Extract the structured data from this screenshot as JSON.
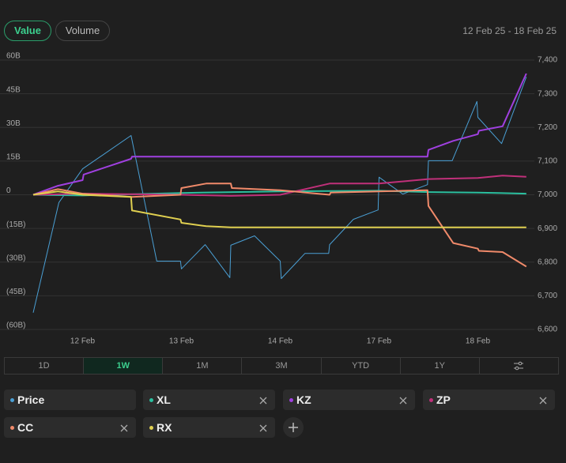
{
  "controls": {
    "toggles": [
      "Value",
      "Volume"
    ],
    "date_range": "12 Feb 25 - 18 Feb 25",
    "ranges": [
      "1D",
      "1W",
      "1M",
      "3M",
      "YTD",
      "1Y"
    ],
    "active_range": "1W",
    "active_toggle": "Value"
  },
  "chart_data": {
    "type": "line",
    "grid": true,
    "xlim": [
      0.5,
      5.5
    ],
    "xticks": [
      {
        "value": 1,
        "label": "12 Feb"
      },
      {
        "value": 2,
        "label": "13 Feb"
      },
      {
        "value": 3,
        "label": "14 Feb"
      },
      {
        "value": 4,
        "label": "17 Feb"
      },
      {
        "value": 5,
        "label": "18 Feb"
      }
    ],
    "ylim": [
      -60,
      60
    ],
    "yticks": [
      {
        "value": 60,
        "label": "60B"
      },
      {
        "value": 45,
        "label": "45B"
      },
      {
        "value": 30,
        "label": "30B"
      },
      {
        "value": 15,
        "label": "15B"
      },
      0,
      {
        "value": -15,
        "label": "(15B)"
      },
      {
        "value": -30,
        "label": "(30B)"
      },
      {
        "value": -45,
        "label": "(45B)"
      },
      {
        "value": -60,
        "label": "(60B)"
      }
    ],
    "y2lim": [
      6600,
      7400
    ],
    "y2ticks": [
      {
        "value": 7400,
        "label": "7,400"
      },
      {
        "value": 7300,
        "label": "7,300"
      },
      {
        "value": 7200,
        "label": "7,200"
      },
      {
        "value": 7100,
        "label": "7,100"
      },
      {
        "value": 7000,
        "label": "7,000"
      },
      {
        "value": 6900,
        "label": "6,900"
      },
      {
        "value": 6800,
        "label": "6,800"
      },
      {
        "value": 6700,
        "label": "6,700"
      },
      {
        "value": 6600,
        "label": "6,600"
      }
    ],
    "series": [
      {
        "name": "Price",
        "color": "#4a9fd4",
        "axis": "y2",
        "x": [
          0.5,
          0.76,
          1.0,
          1.49,
          1.75,
          1.99,
          2.0,
          2.24,
          2.49,
          2.5,
          2.74,
          3.0,
          3.01,
          3.25,
          3.49,
          3.5,
          3.74,
          3.99,
          4.0,
          4.24,
          4.49,
          4.5,
          4.74,
          4.99,
          5.0,
          5.24,
          5.49
        ],
        "values": [
          6650,
          6977,
          7077,
          7176,
          6803,
          6803,
          6780,
          6852,
          6754,
          6850,
          6878,
          6803,
          6751,
          6826,
          6826,
          6852,
          6927,
          6955,
          7052,
          7002,
          7030,
          7101,
          7101,
          7277,
          7230,
          7152,
          7350
        ]
      },
      {
        "name": "XL",
        "color": "#2bbf9f",
        "x": [
          0.5,
          1.0,
          2.0,
          3.0,
          4.0,
          4.5,
          5.0,
          5.49
        ],
        "values": [
          0,
          -0.3,
          0.8,
          1.5,
          1.8,
          1.2,
          1.0,
          0.5
        ]
      },
      {
        "name": "KZ",
        "color": "#a040e0",
        "x": [
          0.5,
          0.75,
          1.0,
          1.01,
          1.49,
          1.5,
          4.49,
          4.5,
          4.75,
          5.0,
          5.01,
          5.25,
          5.49
        ],
        "values": [
          0,
          4,
          6.5,
          9,
          16,
          17,
          17,
          20,
          24,
          27,
          28.5,
          30.5,
          54
        ]
      },
      {
        "name": "ZP",
        "color": "#c0307a",
        "x": [
          0.5,
          1.0,
          2.0,
          2.5,
          3.0,
          3.5,
          4.0,
          4.5,
          5.0,
          5.25,
          5.49
        ],
        "values": [
          0,
          0.5,
          0,
          -0.5,
          0,
          5,
          5,
          7,
          7.5,
          8.5,
          8
        ]
      },
      {
        "name": "CC",
        "color": "#f08a6a",
        "x": [
          0.5,
          0.75,
          1.0,
          1.5,
          1.99,
          2.0,
          2.25,
          2.5,
          2.51,
          3.0,
          3.5,
          3.51,
          4.0,
          4.49,
          4.5,
          4.75,
          5.0,
          5.01,
          5.25,
          5.49
        ],
        "values": [
          0,
          2.5,
          0.5,
          -1,
          0,
          3,
          5,
          5,
          3,
          2,
          0,
          1,
          1.5,
          2,
          -5,
          -21.5,
          -24,
          -25,
          -25.5,
          -32
        ]
      },
      {
        "name": "RX",
        "color": "#e0d050",
        "x": [
          0.5,
          0.75,
          1.0,
          1.49,
          1.5,
          1.99,
          2.0,
          2.25,
          2.5,
          5.49
        ],
        "values": [
          0,
          1.5,
          0,
          -1,
          -7,
          -11,
          -12.5,
          -14,
          -14.5,
          -14.5
        ]
      }
    ]
  }
}
